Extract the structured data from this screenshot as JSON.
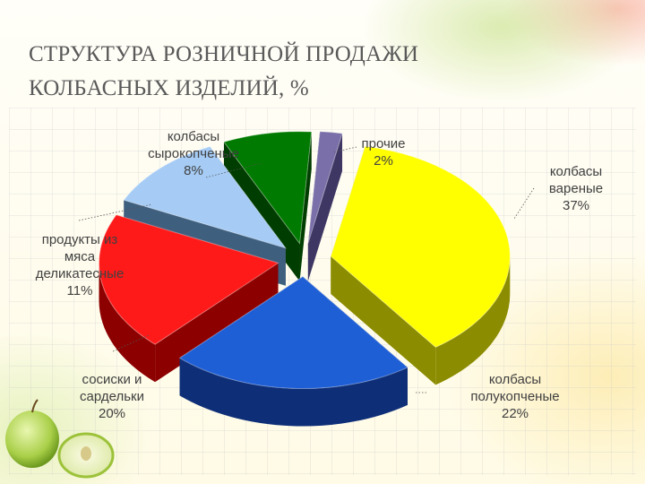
{
  "title_lines": [
    "СТРУКТУРА РОЗНИЧНОЙ ПРОДАЖИ",
    "КОЛБАСНЫХ ИЗДЕЛИЙ, %"
  ],
  "chart_data": {
    "type": "pie",
    "title": "СТРУКТУРА РОЗНИЧНОЙ ПРОДАЖИ КОЛБАСНЫХ ИЗДЕЛИЙ, %",
    "unit": "%",
    "legend": "none",
    "slices": [
      {
        "label_lines": [
          "колбасы",
          "вареные"
        ],
        "value": 37,
        "value_label": "37%",
        "color": "#ffff00",
        "side_color": "#8c8c00"
      },
      {
        "label_lines": [
          "колбасы",
          "полукопченые"
        ],
        "value": 22,
        "value_label": "22%",
        "color": "#1f5fd6",
        "side_color": "#0e2f78"
      },
      {
        "label_lines": [
          "сосиски и",
          "сардельки"
        ],
        "value": 20,
        "value_label": "20%",
        "color": "#ff1a1a",
        "side_color": "#8c0000"
      },
      {
        "label_lines": [
          "продукты из",
          "мяса",
          "деликатесные"
        ],
        "value": 11,
        "value_label": "11%",
        "color": "#a6ccf5",
        "side_color": "#3f5f7f"
      },
      {
        "label_lines": [
          "колбасы",
          "сырокопченые"
        ],
        "value": 8,
        "value_label": "8%",
        "color": "#007a00",
        "side_color": "#003d00"
      },
      {
        "label_lines": [
          "прочие"
        ],
        "value": 2,
        "value_label": "2%",
        "color": "#7a6fa8",
        "side_color": "#3e3663"
      }
    ]
  }
}
